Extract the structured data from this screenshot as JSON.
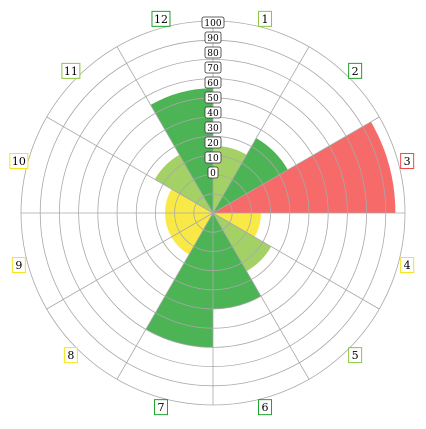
{
  "chart_data": {
    "type": "polar-bar",
    "radial_range": [
      0,
      100
    ],
    "radial_ticks": [
      "0",
      "10",
      "20",
      "30",
      "40",
      "50",
      "60",
      "70",
      "80",
      "90",
      "100"
    ],
    "sectors": [
      {
        "label": "1",
        "value": 35,
        "color": "#8CC63F"
      },
      {
        "label": "2",
        "value": 45,
        "color": "#1FA12B"
      },
      {
        "label": "3",
        "value": 95,
        "color": "#F44545"
      },
      {
        "label": "4",
        "value": 25,
        "color": "#F7E419"
      },
      {
        "label": "5",
        "value": 35,
        "color": "#8CC63F"
      },
      {
        "label": "6",
        "value": 50,
        "color": "#1FA12B"
      },
      {
        "label": "7",
        "value": 70,
        "color": "#1FA12B"
      },
      {
        "label": "8",
        "value": 25,
        "color": "#F7E419"
      },
      {
        "label": "9",
        "value": 25,
        "color": "#F7E419"
      },
      {
        "label": "10",
        "value": 25,
        "color": "#F7E419"
      },
      {
        "label": "11",
        "value": 35,
        "color": "#8CC63F"
      },
      {
        "label": "12",
        "value": 65,
        "color": "#1FA12B"
      }
    ]
  }
}
